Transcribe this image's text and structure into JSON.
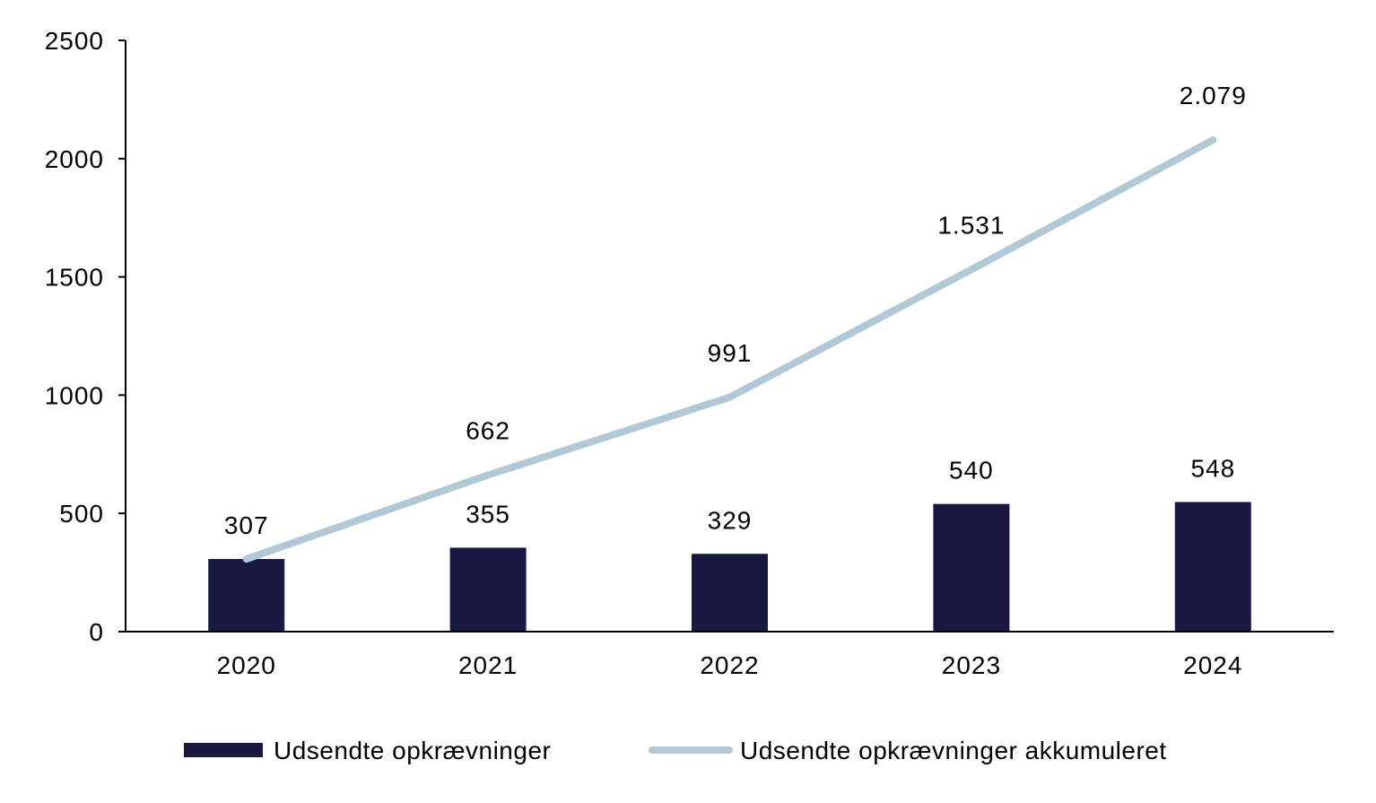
{
  "colors": {
    "bar": "#181840",
    "line": "#b2c8d6",
    "axis": "#000000"
  },
  "chart_data": {
    "type": "bar",
    "categories": [
      "2020",
      "2021",
      "2022",
      "2023",
      "2024"
    ],
    "series": [
      {
        "name": "Udsendte opkrævninger",
        "type": "bar",
        "values": [
          307,
          355,
          329,
          540,
          548
        ],
        "labels": [
          "307",
          "355",
          "329",
          "540",
          "548"
        ]
      },
      {
        "name": "Udsendte opkrævninger akkumuleret",
        "type": "line",
        "values": [
          307,
          662,
          991,
          1531,
          2079
        ],
        "labels": [
          "",
          "662",
          "991",
          "1.531",
          "2.079"
        ]
      }
    ],
    "y_ticks": [
      0,
      500,
      1000,
      1500,
      2000,
      2500
    ],
    "ylim": [
      0,
      2500
    ],
    "grid": false,
    "legend_position": "bottom"
  }
}
